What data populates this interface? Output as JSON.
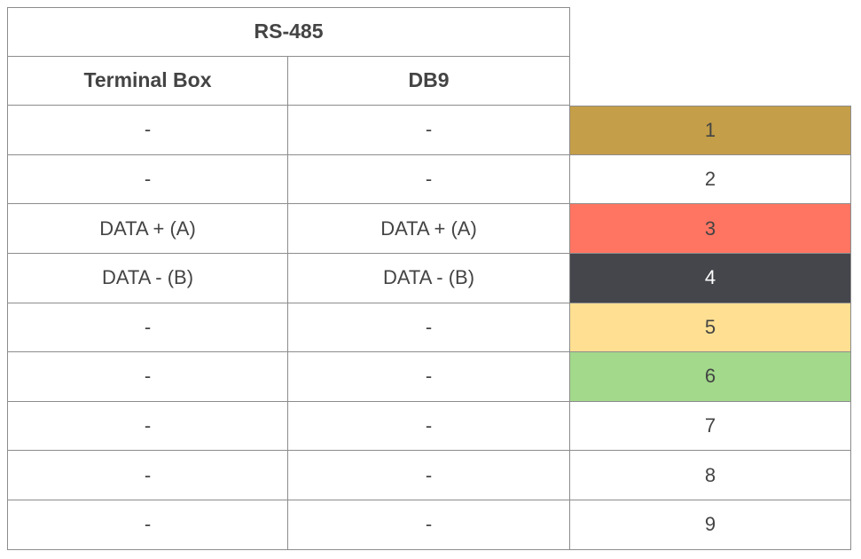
{
  "table": {
    "title": "RS-485",
    "headers": [
      "Terminal Box",
      "DB9"
    ],
    "rows": [
      {
        "terminal": "-",
        "db9": "-",
        "pin": "1",
        "pin_color": "#c49e48",
        "text_color": "#444444"
      },
      {
        "terminal": "-",
        "db9": "-",
        "pin": "2",
        "pin_color": "#ffffff",
        "text_color": "#444444"
      },
      {
        "terminal": "DATA + (A)",
        "db9": "DATA + (A)",
        "pin": "3",
        "pin_color": "#ff7562",
        "text_color": "#444444"
      },
      {
        "terminal": "DATA - (B)",
        "db9": "DATA - (B)",
        "pin": "4",
        "pin_color": "#45464c",
        "text_color": "#ffffff"
      },
      {
        "terminal": "-",
        "db9": "-",
        "pin": "5",
        "pin_color": "#ffe092",
        "text_color": "#444444"
      },
      {
        "terminal": "-",
        "db9": "-",
        "pin": "6",
        "pin_color": "#a2d98b",
        "text_color": "#444444"
      },
      {
        "terminal": "-",
        "db9": "-",
        "pin": "7",
        "pin_color": "#ffffff",
        "text_color": "#444444"
      },
      {
        "terminal": "-",
        "db9": "-",
        "pin": "8",
        "pin_color": "#ffffff",
        "text_color": "#444444"
      },
      {
        "terminal": "-",
        "db9": "-",
        "pin": "9",
        "pin_color": "#ffffff",
        "text_color": "#444444"
      }
    ]
  }
}
